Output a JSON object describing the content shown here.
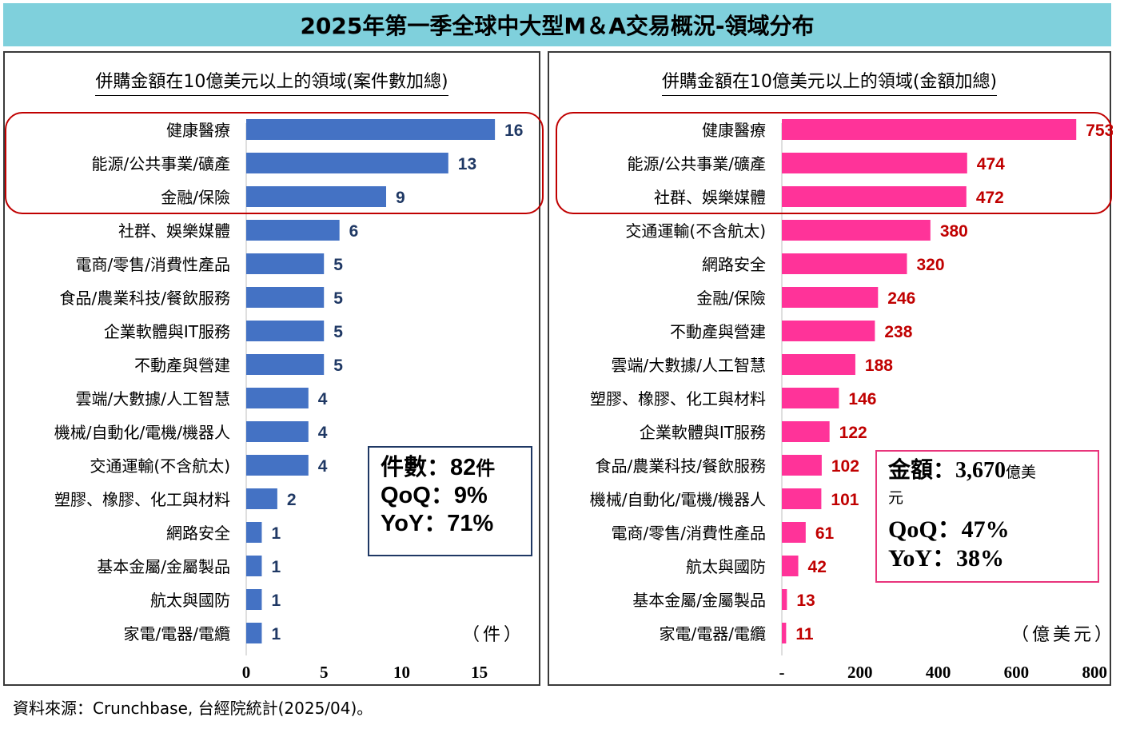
{
  "title": "2025年第一季全球中大型M＆A交易概況-領域分布",
  "source": "資料來源：Crunchbase, 台經院統計(2025/04)。",
  "colors": {
    "left_bar": "#4472c4",
    "left_label": "#1f3864",
    "right_bar": "#ff3399",
    "right_label": "#c00000",
    "highlight": "#c00000"
  },
  "left": {
    "panel_title": "併購金額在10億美元以上的領域(案件數加總)",
    "unit": "（件）",
    "summary": {
      "count_label": "件數：",
      "count_value": "82",
      "count_unit": "件",
      "qoq": "QoQ：9%",
      "yoy": "YoY：71%"
    }
  },
  "right": {
    "panel_title": "併購金額在10億美元以上的領域(金額加總)",
    "unit": "（億美元）",
    "summary": {
      "amount_label": "金額：",
      "amount_value": "3,670",
      "amount_unit_a": "億美",
      "amount_unit_b": "元",
      "qoq": "QoQ：47%",
      "yoy": "YoY：38%"
    }
  },
  "chart_data": [
    {
      "type": "bar",
      "orientation": "horizontal",
      "title": "併購金額在10億美元以上的領域(案件數加總)",
      "categories": [
        "健康醫療",
        "能源/公共事業/礦產",
        "金融/保險",
        "社群、娛樂媒體",
        "電商/零售/消費性產品",
        "食品/農業科技/餐飲服務",
        "企業軟體與IT服務",
        "不動產與營建",
        "雲端/大數據/人工智慧",
        "機械/自動化/電機/機器人",
        "交通運輸(不含航太)",
        "塑膠、橡膠、化工與材料",
        "網路安全",
        "基本金屬/金屬製品",
        "航太與國防",
        "家電/電器/電纜"
      ],
      "values": [
        16,
        13,
        9,
        6,
        5,
        5,
        5,
        5,
        4,
        4,
        4,
        2,
        1,
        1,
        1,
        1
      ],
      "xlim": [
        0,
        18
      ],
      "xticks": [
        "0",
        "5",
        "10",
        "15"
      ],
      "xtick_values": [
        0,
        5,
        10,
        15
      ],
      "highlighted_top": 3
    },
    {
      "type": "bar",
      "orientation": "horizontal",
      "title": "併購金額在10億美元以上的領域(金額加總)",
      "categories": [
        "健康醫療",
        "能源/公共事業/礦產",
        "社群、娛樂媒體",
        "交通運輸(不含航太)",
        "網路安全",
        "金融/保險",
        "不動產與營建",
        "雲端/大數據/人工智慧",
        "塑膠、橡膠、化工與材料",
        "企業軟體與IT服務",
        "食品/農業科技/餐飲服務",
        "機械/自動化/電機/機器人",
        "電商/零售/消費性產品",
        "航太與國防",
        "基本金屬/金屬製品",
        "家電/電器/電纜"
      ],
      "values": [
        753,
        474,
        472,
        380,
        320,
        246,
        238,
        188,
        146,
        122,
        102,
        101,
        61,
        42,
        13,
        11
      ],
      "xlim": [
        0,
        820
      ],
      "xticks": [
        "-",
        "200",
        "400",
        "600",
        "800"
      ],
      "xtick_values": [
        0,
        200,
        400,
        600,
        800
      ],
      "highlighted_top": 3
    }
  ]
}
